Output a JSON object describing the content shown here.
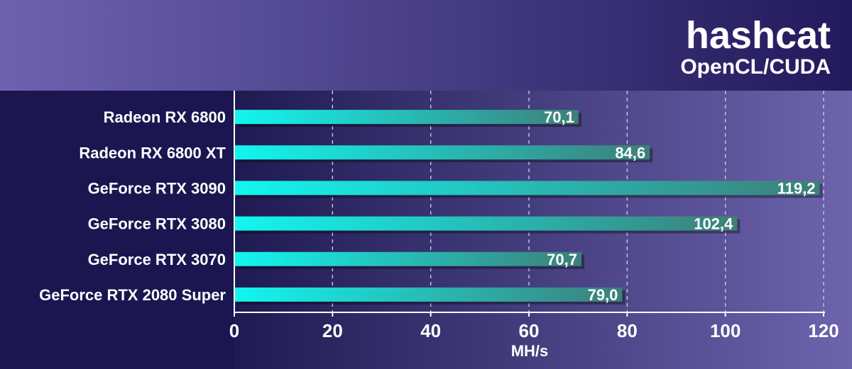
{
  "header": {
    "title": "hashcat",
    "subtitle": "OpenCL/CUDA"
  },
  "colors": {
    "header_bg_left": "#6e62b0",
    "header_bg_right": "#221a5c",
    "label_panel_bg": "#1b1650",
    "plot_bg_left": "#1f1a52",
    "plot_bg_right": "#6d64ad",
    "bar_start": "#12f6f0",
    "bar_end": "#3d7f79",
    "grid": "#c8c8e6"
  },
  "chart_data": {
    "type": "bar",
    "orientation": "horizontal",
    "categories": [
      "Radeon RX 6800",
      "Radeon RX 6800 XT",
      "GeForce RTX 3090",
      "GeForce RTX 3080",
      "GeForce RTX 3070",
      "GeForce RTX 2080 Super"
    ],
    "values": [
      70.1,
      84.6,
      119.2,
      102.4,
      70.7,
      79.0
    ],
    "value_labels": [
      "70,1",
      "84,6",
      "119,2",
      "102,4",
      "70,7",
      "79,0"
    ],
    "title": "hashcat",
    "subtitle": "OpenCL/CUDA",
    "xlabel": "MH/s",
    "ylabel": "",
    "xlim": [
      0,
      120
    ],
    "xticks": [
      0,
      20,
      40,
      60,
      80,
      100,
      120
    ],
    "xtick_labels": [
      "0",
      "20",
      "40",
      "60",
      "80",
      "100",
      "120"
    ],
    "grid": true,
    "legend": "none"
  }
}
